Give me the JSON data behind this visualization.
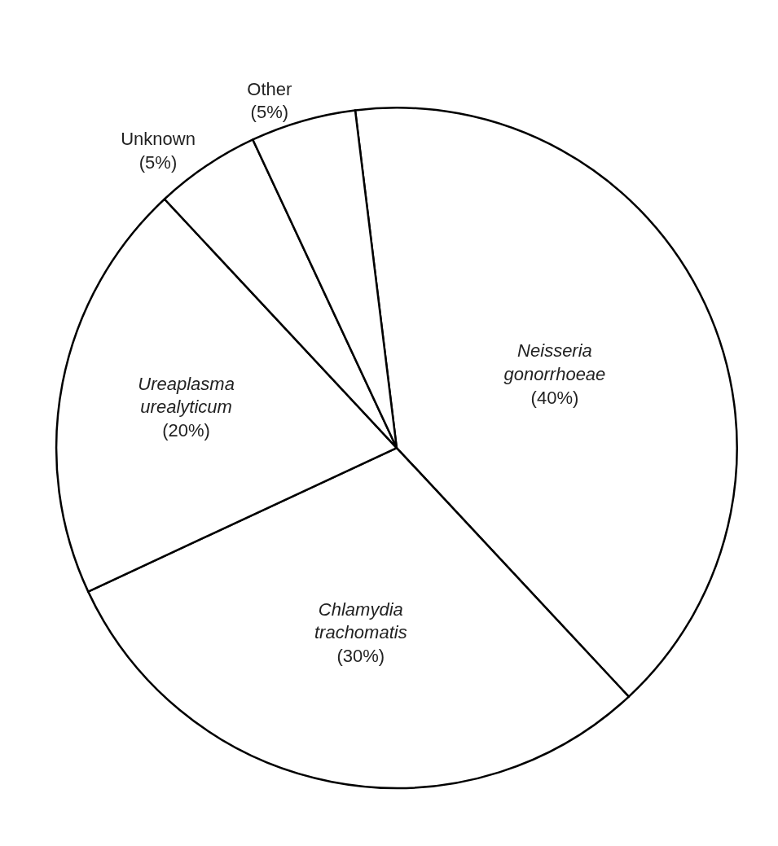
{
  "chart_data": {
    "type": "pie",
    "categories": [
      "Neisseria gonorrhoeae",
      "Chlamydia trachomatis",
      "Ureaplasma urealyticum",
      "Unknown",
      "Other"
    ],
    "values": [
      40,
      30,
      20,
      5,
      5
    ],
    "value_labels": [
      "(40%)",
      "(30%)",
      "(20%)",
      "(5%)",
      "(5%)"
    ],
    "colors": [
      "#ffffff",
      "#ffffff",
      "#ffffff",
      "#ffffff",
      "#ffffff"
    ],
    "legend": false
  }
}
